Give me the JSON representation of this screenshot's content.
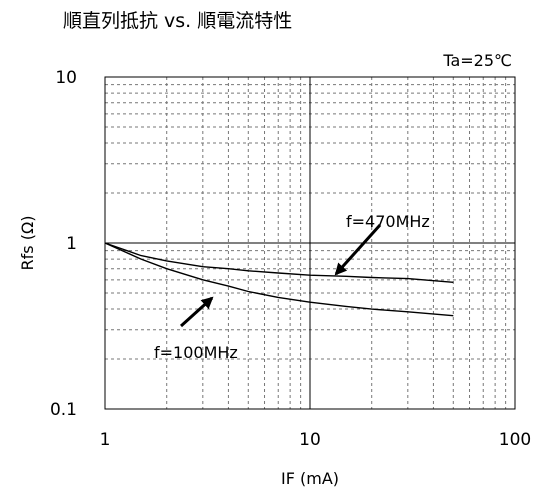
{
  "chart_data": {
    "type": "line",
    "title": "順直列抵抗 vs. 順電流特性",
    "condition": "Ta=25℃",
    "xlabel": "IF (mA)",
    "ylabel": "Rfs (Ω)",
    "xscale": "log",
    "yscale": "log",
    "xlim": [
      1,
      100
    ],
    "ylim": [
      0.1,
      10
    ],
    "xticks": [
      {
        "value": 1,
        "label": "1"
      },
      {
        "value": 10,
        "label": "10"
      },
      {
        "value": 100,
        "label": "100"
      }
    ],
    "yticks": [
      {
        "value": 0.1,
        "label": "0.1"
      },
      {
        "value": 1,
        "label": "1"
      },
      {
        "value": 10,
        "label": "10"
      }
    ],
    "grid": true,
    "legend": "none",
    "series": [
      {
        "name": "f=470MHz",
        "x": [
          1,
          1.5,
          2,
          3,
          4,
          5,
          7,
          10,
          15,
          20,
          30,
          50
        ],
        "y": [
          1.0,
          0.84,
          0.78,
          0.72,
          0.7,
          0.68,
          0.66,
          0.64,
          0.63,
          0.62,
          0.61,
          0.58
        ]
      },
      {
        "name": "f=100MHz",
        "x": [
          1,
          1.5,
          2,
          3,
          4,
          5,
          7,
          10,
          15,
          20,
          30,
          50
        ],
        "y": [
          1.0,
          0.8,
          0.7,
          0.6,
          0.55,
          0.51,
          0.47,
          0.44,
          0.415,
          0.4,
          0.385,
          0.365
        ]
      }
    ],
    "annotations": [
      {
        "text": "f=470MHz",
        "series": "f=470MHz"
      },
      {
        "text": "f=100MHz",
        "series": "f=100MHz"
      }
    ]
  }
}
